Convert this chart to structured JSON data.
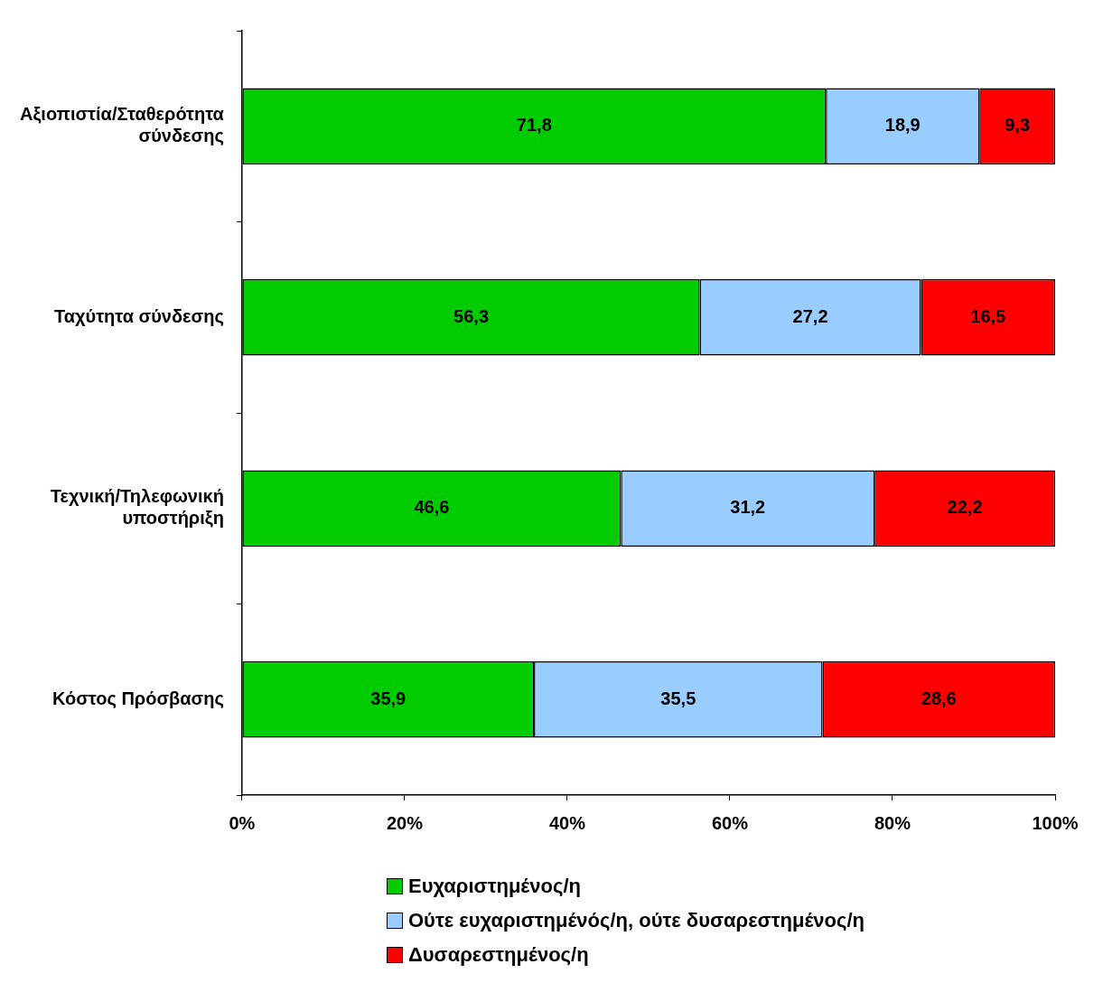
{
  "chart_data": {
    "type": "bar",
    "orientation": "horizontal",
    "stacked": true,
    "categories": [
      "Αξιοπιστία/Σταθερότητα σύνδεσης",
      "Ταχύτητα σύνδεσης",
      "Τεχνική/Τηλεφωνική υποστήριξη",
      "Κόστος Πρόσβασης"
    ],
    "series": [
      {
        "name": "Ευχαριστημένος/η",
        "color": "#00cc00",
        "values": [
          71.8,
          56.3,
          46.6,
          35.9
        ],
        "value_labels": [
          "71,8",
          "56,3",
          "46,6",
          "35,9"
        ]
      },
      {
        "name": "Ούτε ευχαριστημένός/η, ούτε δυσαρεστημένος/η",
        "color": "#99ccff",
        "values": [
          18.9,
          27.2,
          31.2,
          35.5
        ],
        "value_labels": [
          "18,9",
          "27,2",
          "31,2",
          "35,5"
        ]
      },
      {
        "name": "Δυσαρεστημένος/η",
        "color": "#ff0000",
        "values": [
          9.3,
          16.5,
          22.2,
          28.6
        ],
        "value_labels": [
          "9,3",
          "16,5",
          "22,2",
          "28,6"
        ]
      }
    ],
    "xlim": [
      0,
      100
    ],
    "xticks": [
      {
        "value": 0,
        "label": "0%"
      },
      {
        "value": 20,
        "label": "20%"
      },
      {
        "value": 40,
        "label": "40%"
      },
      {
        "value": 60,
        "label": "60%"
      },
      {
        "value": 80,
        "label": "80%"
      },
      {
        "value": 100,
        "label": "100%"
      }
    ],
    "grid": false,
    "legend": "bottom"
  }
}
